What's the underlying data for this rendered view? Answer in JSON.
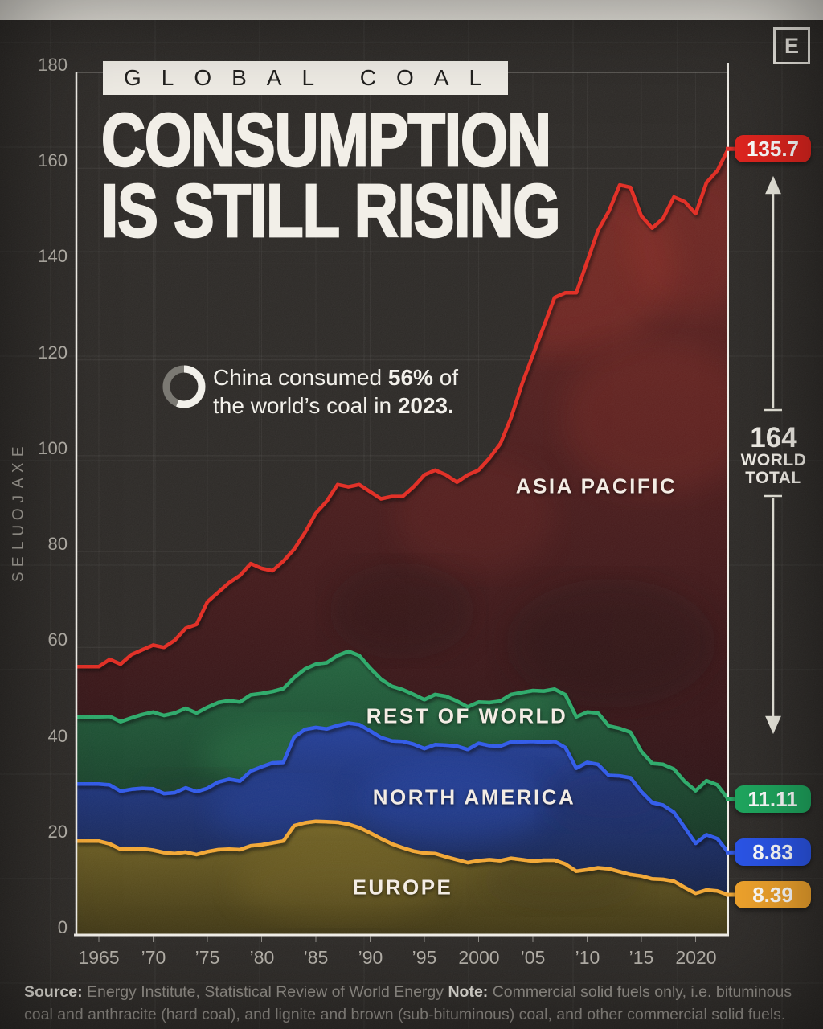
{
  "masthead": {
    "logo_letter": "E"
  },
  "header": {
    "kicker": "GLOBAL COAL",
    "title_line1": "CONSUMPTION",
    "title_line2": "IS STILL RISING"
  },
  "annotation": {
    "donut_percent": 56,
    "line1_pre": "China consumed ",
    "line1_bold": "56%",
    "line1_post": " of",
    "line2_pre": "the world’s coal in ",
    "line2_bold": "2023."
  },
  "axes": {
    "y_title": "EXAJOULES",
    "y_ticks": [
      0,
      20,
      40,
      60,
      80,
      100,
      120,
      140,
      160,
      180
    ],
    "x_ticks": [
      {
        "year": 1965,
        "label": "1965"
      },
      {
        "year": 1970,
        "label": "’70"
      },
      {
        "year": 1975,
        "label": "’75"
      },
      {
        "year": 1980,
        "label": "’80"
      },
      {
        "year": 1985,
        "label": "’85"
      },
      {
        "year": 1990,
        "label": "’90"
      },
      {
        "year": 1995,
        "label": "’95"
      },
      {
        "year": 2000,
        "label": "2000"
      },
      {
        "year": 2005,
        "label": "’05"
      },
      {
        "year": 2010,
        "label": "’10"
      },
      {
        "year": 2015,
        "label": "’15"
      },
      {
        "year": 2020,
        "label": "2020"
      }
    ]
  },
  "chart_data": {
    "type": "area",
    "stacked": true,
    "unit": "exajoules",
    "title": "Global coal consumption is still rising",
    "ylim": [
      0,
      180
    ],
    "world_total_2023": 164,
    "years": [
      1965,
      1966,
      1967,
      1968,
      1969,
      1970,
      1971,
      1972,
      1973,
      1974,
      1975,
      1976,
      1977,
      1978,
      1979,
      1980,
      1981,
      1982,
      1983,
      1984,
      1985,
      1986,
      1987,
      1988,
      1989,
      1990,
      1991,
      1992,
      1993,
      1994,
      1995,
      1996,
      1997,
      1998,
      1999,
      2000,
      2001,
      2002,
      2003,
      2004,
      2005,
      2006,
      2007,
      2008,
      2009,
      2010,
      2011,
      2012,
      2013,
      2014,
      2015,
      2016,
      2017,
      2018,
      2019,
      2020,
      2021,
      2022,
      2023
    ],
    "series": [
      {
        "name": "EUROPE",
        "color": "#F1A42F",
        "end_label": "8.39",
        "end_value": 8.39,
        "values": [
          19.6,
          19.0,
          17.9,
          17.9,
          18.0,
          17.7,
          17.2,
          17.0,
          17.3,
          16.8,
          17.4,
          17.8,
          17.9,
          17.8,
          18.6,
          18.8,
          19.2,
          19.6,
          22.8,
          23.4,
          23.7,
          23.6,
          23.5,
          23.1,
          22.4,
          21.3,
          20.1,
          19.0,
          18.2,
          17.5,
          17.1,
          17.0,
          16.3,
          15.7,
          15.1,
          15.5,
          15.7,
          15.5,
          16.0,
          15.7,
          15.4,
          15.6,
          15.6,
          14.8,
          13.3,
          13.6,
          14.0,
          13.8,
          13.2,
          12.6,
          12.3,
          11.7,
          11.6,
          11.2,
          9.9,
          8.7,
          9.4,
          9.2,
          8.39
        ]
      },
      {
        "name": "NORTH AMERICA",
        "color": "#2B55E8",
        "end_label": "8.83",
        "end_value": 8.83,
        "values": [
          11.9,
          12.3,
          12.1,
          12.5,
          12.6,
          12.8,
          12.3,
          12.7,
          13.4,
          13.1,
          13.2,
          14.1,
          14.6,
          14.3,
          15.6,
          16.3,
          16.7,
          16.4,
          18.5,
          19.5,
          19.6,
          19.4,
          20.2,
          21.1,
          21.5,
          21.3,
          21.1,
          21.5,
          22.2,
          22.3,
          21.8,
          22.7,
          23.3,
          23.7,
          23.6,
          24.5,
          23.8,
          23.9,
          24.3,
          24.6,
          25.0,
          24.6,
          24.8,
          24.3,
          21.5,
          22.4,
          21.6,
          19.5,
          20.0,
          20.2,
          17.6,
          15.9,
          15.5,
          14.4,
          12.5,
          10.4,
          11.5,
          10.9,
          8.83
        ]
      },
      {
        "name": "REST OF WORLD",
        "color": "#28A765",
        "end_label": "11.11",
        "end_value": 11.11,
        "values": [
          14.0,
          14.3,
          14.5,
          14.9,
          15.4,
          16.0,
          16.3,
          16.6,
          16.6,
          16.4,
          16.9,
          16.6,
          16.4,
          16.5,
          15.9,
          15.3,
          14.9,
          15.4,
          12.4,
          12.6,
          13.2,
          13.8,
          14.6,
          15.0,
          14.4,
          13.1,
          12.2,
          11.4,
          10.8,
          10.4,
          10.2,
          10.5,
          10.2,
          9.4,
          8.9,
          8.6,
          9.0,
          9.4,
          9.9,
          10.3,
          10.6,
          10.7,
          10.9,
          11.0,
          10.7,
          10.5,
          10.7,
          10.3,
          9.9,
          9.5,
          8.4,
          8.2,
          8.5,
          9.0,
          9.6,
          11.0,
          11.3,
          11.2,
          11.11
        ]
      },
      {
        "name": "ASIA PACIFIC",
        "color": "#E0251F",
        "end_label": "135.7",
        "end_value": 135.7,
        "values": [
          10.5,
          11.9,
          12.0,
          13.2,
          13.5,
          14.0,
          14.2,
          15.2,
          16.7,
          18.5,
          22.0,
          23.0,
          24.6,
          26.4,
          27.4,
          26.1,
          25.2,
          26.6,
          26.8,
          28.5,
          31.5,
          33.7,
          35.7,
          34.3,
          35.7,
          36.8,
          37.6,
          39.6,
          40.3,
          43.3,
          46.9,
          46.8,
          46.2,
          45.7,
          48.4,
          48.4,
          51.0,
          53.7,
          57.8,
          64.4,
          70.0,
          76.1,
          81.7,
          83.9,
          88.5,
          94.0,
          100.7,
          107.4,
          113.4,
          113.7,
          111.7,
          111.7,
          113.9,
          119.4,
          121.0,
          120.4,
          124.8,
          128.2,
          135.7
        ]
      }
    ]
  },
  "right_panel": {
    "badges": [
      {
        "label": "135.7",
        "color": "#E0251F",
        "series": "ASIA PACIFIC"
      },
      {
        "label": "11.11",
        "color": "#1FA75F",
        "series": "REST OF WORLD"
      },
      {
        "label": "8.83",
        "color": "#2B55E8",
        "series": "NORTH AMERICA"
      },
      {
        "label": "8.39",
        "color": "#EFA32D",
        "series": "EUROPE"
      }
    ],
    "world_total": {
      "value": "164",
      "line1": "WORLD",
      "line2": "TOTAL"
    }
  },
  "footer": {
    "source_label": "Source:",
    "source_text": " Energy Institute, Statistical Review of World Energy ",
    "note_label": "Note:",
    "note_text": " Commercial solid fuels only, i.e. bituminous coal and anthracite (hard coal), and lignite and brown (sub-bituminous) coal, and other commercial solid fuels."
  }
}
